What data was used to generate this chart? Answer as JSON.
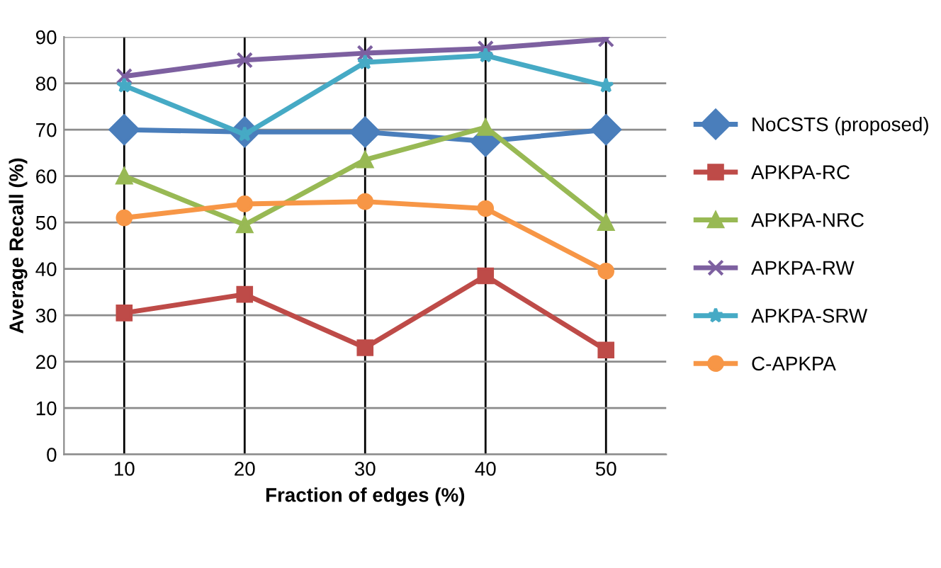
{
  "chart_data": {
    "type": "line",
    "xlabel": "Fraction of edges (%)",
    "ylabel": "Average Recall (%)",
    "categories": [
      "10",
      "20",
      "30",
      "40",
      "50"
    ],
    "ylim": [
      0,
      90
    ],
    "yticks": [
      0,
      10,
      20,
      30,
      40,
      50,
      60,
      70,
      80,
      90
    ],
    "grid": true,
    "legend": "right",
    "series": [
      {
        "name": "NoCSTS (proposed)",
        "color": "#4a7ebb",
        "marker": "diamond",
        "values": [
          70,
          69.5,
          69.5,
          67.5,
          70
        ]
      },
      {
        "name": "APKPA-RC",
        "color": "#be4b48",
        "marker": "square",
        "values": [
          30.5,
          34.5,
          23,
          38.5,
          22.5
        ]
      },
      {
        "name": "APKPA-NRC",
        "color": "#98b954",
        "marker": "triangle",
        "values": [
          60,
          49.5,
          63.5,
          70.5,
          50
        ]
      },
      {
        "name": "APKPA-RW",
        "color": "#7d60a0",
        "marker": "cross",
        "values": [
          81.5,
          85,
          86.5,
          87.5,
          89.5
        ]
      },
      {
        "name": "APKPA-SRW",
        "color": "#46aac5",
        "marker": "star",
        "values": [
          79.5,
          69,
          84.5,
          86,
          79.5
        ]
      },
      {
        "name": "C-APKPA",
        "color": "#f79646",
        "marker": "circle",
        "values": [
          51,
          54,
          54.5,
          53,
          39.5
        ]
      }
    ]
  }
}
